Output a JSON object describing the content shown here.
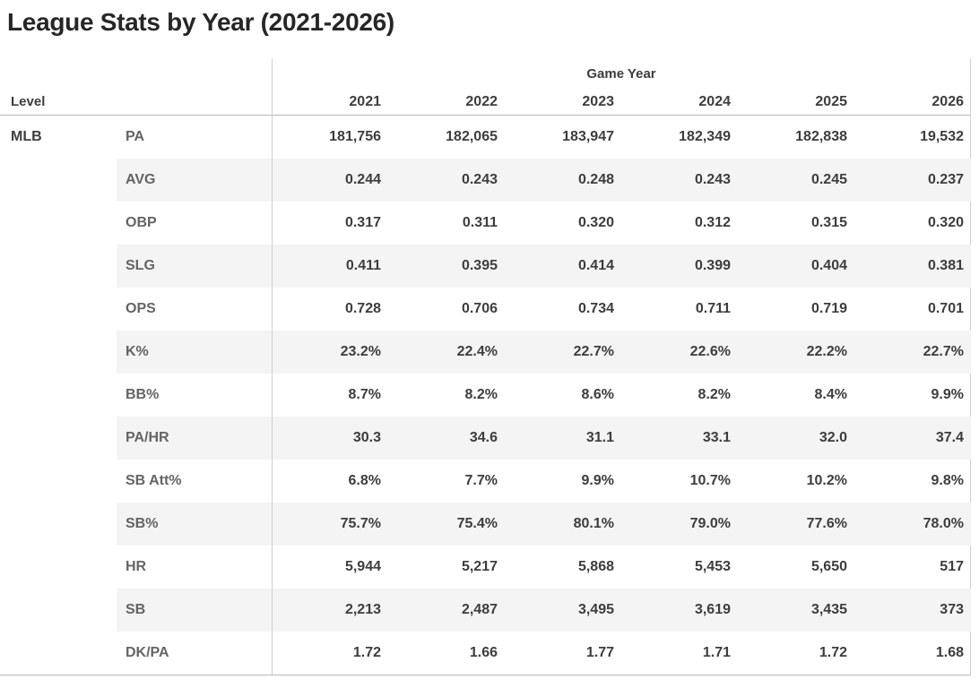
{
  "title": "League Stats by Year (2021-2026)",
  "chart_data": {
    "type": "table",
    "title": "League Stats by Year (2021-2026)",
    "column_group_label": "Game Year",
    "row_group": {
      "label": "Level",
      "value": "MLB"
    },
    "columns": [
      "2021",
      "2022",
      "2023",
      "2024",
      "2025",
      "2026"
    ],
    "rows": [
      {
        "stat": "PA",
        "values": [
          "181,756",
          "182,065",
          "183,947",
          "182,349",
          "182,838",
          "19,532"
        ]
      },
      {
        "stat": "AVG",
        "values": [
          "0.244",
          "0.243",
          "0.248",
          "0.243",
          "0.245",
          "0.237"
        ]
      },
      {
        "stat": "OBP",
        "values": [
          "0.317",
          "0.311",
          "0.320",
          "0.312",
          "0.315",
          "0.320"
        ]
      },
      {
        "stat": "SLG",
        "values": [
          "0.411",
          "0.395",
          "0.414",
          "0.399",
          "0.404",
          "0.381"
        ]
      },
      {
        "stat": "OPS",
        "values": [
          "0.728",
          "0.706",
          "0.734",
          "0.711",
          "0.719",
          "0.701"
        ]
      },
      {
        "stat": "K%",
        "values": [
          "23.2%",
          "22.4%",
          "22.7%",
          "22.6%",
          "22.2%",
          "22.7%"
        ]
      },
      {
        "stat": "BB%",
        "values": [
          "8.7%",
          "8.2%",
          "8.6%",
          "8.2%",
          "8.4%",
          "9.9%"
        ]
      },
      {
        "stat": "PA/HR",
        "values": [
          "30.3",
          "34.6",
          "31.1",
          "33.1",
          "32.0",
          "37.4"
        ]
      },
      {
        "stat": "SB Att%",
        "values": [
          "6.8%",
          "7.7%",
          "9.9%",
          "10.7%",
          "10.2%",
          "9.8%"
        ]
      },
      {
        "stat": "SB%",
        "values": [
          "75.7%",
          "75.4%",
          "80.1%",
          "79.0%",
          "77.6%",
          "78.0%"
        ]
      },
      {
        "stat": "HR",
        "values": [
          "5,944",
          "5,217",
          "5,868",
          "5,453",
          "5,650",
          "517"
        ]
      },
      {
        "stat": "SB",
        "values": [
          "2,213",
          "2,487",
          "3,495",
          "3,619",
          "3,435",
          "373"
        ]
      },
      {
        "stat": "DK/PA",
        "values": [
          "1.72",
          "1.66",
          "1.77",
          "1.71",
          "1.72",
          "1.68"
        ]
      }
    ],
    "layout": {
      "striped_rows": true,
      "stripe_color": "#f4f4f4",
      "values_alignment": "right"
    }
  }
}
